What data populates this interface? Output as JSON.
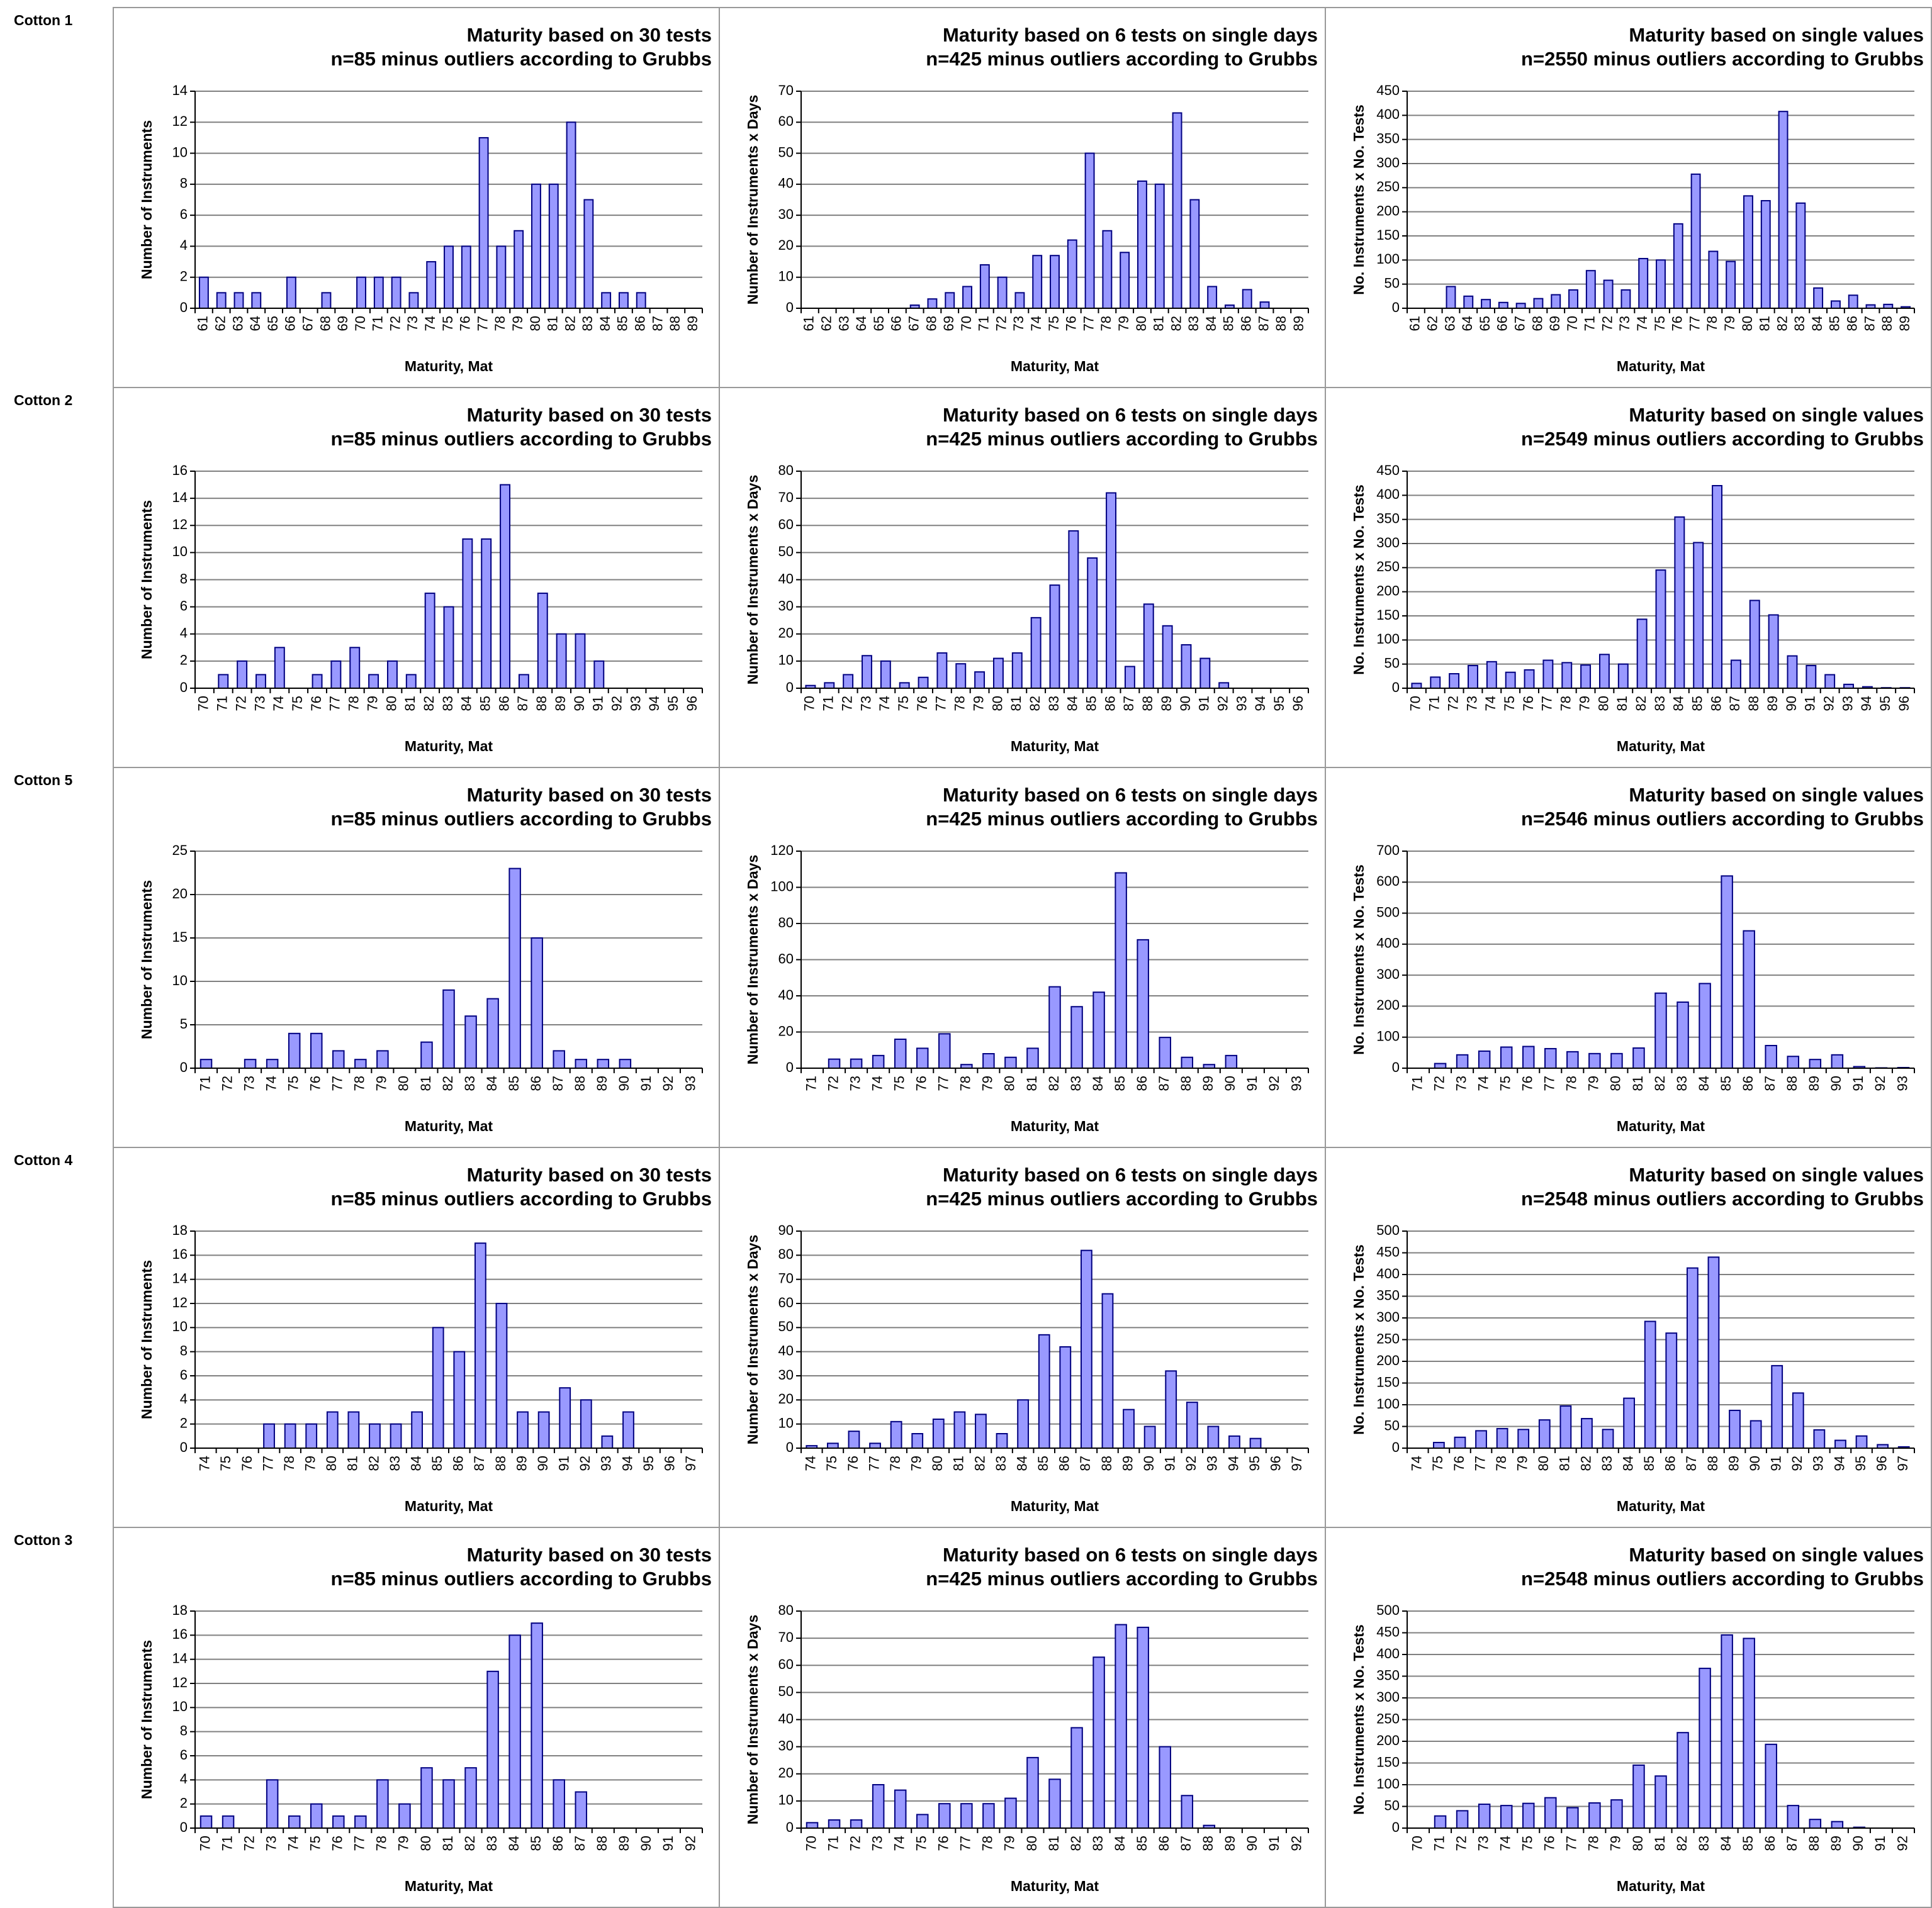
{
  "row_labels": [
    "Cotton 1",
    "Cotton 2",
    "Cotton 5",
    "Cotton 4",
    "Cotton 3"
  ],
  "chart_data": [
    {
      "type": "bar",
      "title": "Maturity based on 30 tests",
      "subtitle": "n=85 minus outliers according to Grubbs",
      "x_label": "Maturity, Mat",
      "y_label": "Number of Instruments",
      "color": "#9999ff",
      "categories": [
        "61",
        "62",
        "63",
        "64",
        "65",
        "66",
        "67",
        "68",
        "69",
        "70",
        "71",
        "72",
        "73",
        "74",
        "75",
        "76",
        "77",
        "78",
        "79",
        "80",
        "81",
        "82",
        "83",
        "84",
        "85",
        "86",
        "87",
        "88",
        "89"
      ],
      "values": [
        2,
        1,
        1,
        1,
        0,
        2,
        0,
        1,
        0,
        2,
        2,
        2,
        1,
        3,
        4,
        4,
        11,
        4,
        5,
        8,
        8,
        12,
        7,
        1,
        1,
        1,
        0,
        0,
        0
      ],
      "ylim": [
        0,
        14
      ],
      "yticks": [
        0,
        2,
        4,
        6,
        8,
        10,
        12,
        14
      ],
      "grid": true
    },
    {
      "type": "bar",
      "title": "Maturity based on 6 tests on single days",
      "subtitle": "n=425 minus outliers according to Grubbs",
      "x_label": "Maturity, Mat",
      "y_label": "Number of Instruments x Days",
      "color": "#9999ff",
      "categories": [
        "61",
        "62",
        "63",
        "64",
        "65",
        "66",
        "67",
        "68",
        "69",
        "70",
        "71",
        "72",
        "73",
        "74",
        "75",
        "76",
        "77",
        "78",
        "79",
        "80",
        "81",
        "82",
        "83",
        "84",
        "85",
        "86",
        "87",
        "88",
        "89"
      ],
      "values": [
        0,
        0,
        0,
        0,
        0,
        0,
        1,
        3,
        5,
        7,
        14,
        10,
        5,
        17,
        17,
        22,
        50,
        25,
        18,
        41,
        40,
        63,
        35,
        7,
        1,
        6,
        2,
        0,
        0
      ],
      "ylim": [
        0,
        70
      ],
      "yticks": [
        0,
        10,
        20,
        30,
        40,
        50,
        60,
        70
      ],
      "grid": true
    },
    {
      "type": "bar",
      "title": "Maturity based on single values",
      "subtitle": "n=2550 minus outliers according to Grubbs",
      "x_label": "Maturity, Mat",
      "y_label": "No. Instruments x No. Tests",
      "color": "#9999ff",
      "categories": [
        "61",
        "62",
        "63",
        "64",
        "65",
        "66",
        "67",
        "68",
        "69",
        "70",
        "71",
        "72",
        "73",
        "74",
        "75",
        "76",
        "77",
        "78",
        "79",
        "80",
        "81",
        "82",
        "83",
        "84",
        "85",
        "86",
        "87",
        "88",
        "89"
      ],
      "values": [
        0,
        0,
        45,
        25,
        18,
        12,
        10,
        20,
        28,
        38,
        78,
        58,
        38,
        103,
        100,
        175,
        278,
        118,
        97,
        233,
        223,
        408,
        218,
        42,
        15,
        27,
        7,
        8,
        3
      ],
      "ylim": [
        0,
        450
      ],
      "yticks": [
        0,
        50,
        100,
        150,
        200,
        250,
        300,
        350,
        400,
        450
      ],
      "grid": true
    },
    {
      "type": "bar",
      "title": "Maturity based on 30 tests",
      "subtitle": "n=85 minus outliers according to Grubbs",
      "x_label": "Maturity, Mat",
      "y_label": "Number of Instruments",
      "color": "#9999ff",
      "categories": [
        "70",
        "71",
        "72",
        "73",
        "74",
        "75",
        "76",
        "77",
        "78",
        "79",
        "80",
        "81",
        "82",
        "83",
        "84",
        "85",
        "86",
        "87",
        "88",
        "89",
        "90",
        "91",
        "92",
        "93",
        "94",
        "95",
        "96"
      ],
      "values": [
        0,
        1,
        2,
        1,
        3,
        0,
        1,
        2,
        3,
        1,
        2,
        1,
        7,
        6,
        11,
        11,
        15,
        1,
        7,
        4,
        4,
        2,
        0,
        0,
        0,
        0,
        0
      ],
      "ylim": [
        0,
        16
      ],
      "yticks": [
        0,
        2,
        4,
        6,
        8,
        10,
        12,
        14,
        16
      ],
      "grid": true
    },
    {
      "type": "bar",
      "title": "Maturity based on 6 tests on single days",
      "subtitle": "n=425 minus outliers according to Grubbs",
      "x_label": "Maturity, Mat",
      "y_label": "Number of Instruments x Days",
      "color": "#9999ff",
      "categories": [
        "70",
        "71",
        "72",
        "73",
        "74",
        "75",
        "76",
        "77",
        "78",
        "79",
        "80",
        "81",
        "82",
        "83",
        "84",
        "85",
        "86",
        "87",
        "88",
        "89",
        "90",
        "91",
        "92",
        "93",
        "94",
        "95",
        "96"
      ],
      "values": [
        1,
        2,
        5,
        12,
        10,
        2,
        4,
        13,
        9,
        6,
        11,
        13,
        26,
        38,
        58,
        48,
        72,
        8,
        31,
        23,
        16,
        11,
        2,
        0,
        0,
        0,
        0
      ],
      "ylim": [
        0,
        80
      ],
      "yticks": [
        0,
        10,
        20,
        30,
        40,
        50,
        60,
        70,
        80
      ],
      "grid": true
    },
    {
      "type": "bar",
      "title": "Maturity based on single values",
      "subtitle": "n=2549 minus outliers according to Grubbs",
      "x_label": "Maturity, Mat",
      "y_label": "No. Instruments x No. Tests",
      "color": "#9999ff",
      "categories": [
        "70",
        "71",
        "72",
        "73",
        "74",
        "75",
        "76",
        "77",
        "78",
        "79",
        "80",
        "81",
        "82",
        "83",
        "84",
        "85",
        "86",
        "87",
        "88",
        "89",
        "90",
        "91",
        "92",
        "93",
        "94",
        "95",
        "96"
      ],
      "values": [
        10,
        23,
        30,
        47,
        55,
        33,
        38,
        58,
        53,
        48,
        70,
        50,
        143,
        245,
        355,
        302,
        420,
        58,
        182,
        152,
        67,
        47,
        28,
        8,
        3,
        1,
        1
      ],
      "ylim": [
        0,
        450
      ],
      "yticks": [
        0,
        50,
        100,
        150,
        200,
        250,
        300,
        350,
        400,
        450
      ],
      "grid": true
    },
    {
      "type": "bar",
      "title": "Maturity based on 30 tests",
      "subtitle": "n=85 minus outliers according to Grubbs",
      "x_label": "Maturity, Mat",
      "y_label": "Number of Instruments",
      "color": "#9999ff",
      "categories": [
        "71",
        "72",
        "73",
        "74",
        "75",
        "76",
        "77",
        "78",
        "79",
        "80",
        "81",
        "82",
        "83",
        "84",
        "85",
        "86",
        "87",
        "88",
        "89",
        "90",
        "91",
        "92",
        "93"
      ],
      "values": [
        1,
        0,
        1,
        1,
        4,
        4,
        2,
        1,
        2,
        0,
        3,
        9,
        6,
        8,
        23,
        15,
        2,
        1,
        1,
        1,
        0,
        0,
        0
      ],
      "ylim": [
        0,
        25
      ],
      "yticks": [
        0,
        5,
        10,
        15,
        20,
        25
      ],
      "grid": true
    },
    {
      "type": "bar",
      "title": "Maturity based on 6 tests on single days",
      "subtitle": "n=425 minus outliers according to Grubbs",
      "x_label": "Maturity, Mat",
      "y_label": "Number of Instruments x Days",
      "color": "#9999ff",
      "categories": [
        "71",
        "72",
        "73",
        "74",
        "75",
        "76",
        "77",
        "78",
        "79",
        "80",
        "81",
        "82",
        "83",
        "84",
        "85",
        "86",
        "87",
        "88",
        "89",
        "90",
        "91",
        "92",
        "93"
      ],
      "values": [
        0,
        5,
        5,
        7,
        16,
        11,
        19,
        2,
        8,
        6,
        11,
        45,
        34,
        42,
        108,
        71,
        17,
        6,
        2,
        7,
        0,
        0,
        0
      ],
      "ylim": [
        0,
        120
      ],
      "yticks": [
        0,
        20,
        40,
        60,
        80,
        100,
        120
      ],
      "grid": true
    },
    {
      "type": "bar",
      "title": "Maturity based on single values",
      "subtitle": "n=2546 minus outliers according to Grubbs",
      "x_label": "Maturity, Mat",
      "y_label": "No. Instruments x No. Tests",
      "color": "#9999ff",
      "categories": [
        "71",
        "72",
        "73",
        "74",
        "75",
        "76",
        "77",
        "78",
        "79",
        "80",
        "81",
        "82",
        "83",
        "84",
        "85",
        "86",
        "87",
        "88",
        "89",
        "90",
        "91",
        "92",
        "93"
      ],
      "values": [
        0,
        15,
        43,
        55,
        68,
        70,
        63,
        53,
        47,
        47,
        65,
        242,
        213,
        273,
        620,
        443,
        73,
        38,
        28,
        43,
        5,
        1,
        2
      ],
      "ylim": [
        0,
        700
      ],
      "yticks": [
        0,
        100,
        200,
        300,
        400,
        500,
        600,
        700
      ],
      "grid": true
    },
    {
      "type": "bar",
      "title": "Maturity based on 30 tests",
      "subtitle": "n=85 minus outliers according to Grubbs",
      "x_label": "Maturity, Mat",
      "y_label": "Number of Instruments",
      "color": "#9999ff",
      "categories": [
        "74",
        "75",
        "76",
        "77",
        "78",
        "79",
        "80",
        "81",
        "82",
        "83",
        "84",
        "85",
        "86",
        "87",
        "88",
        "89",
        "90",
        "91",
        "92",
        "93",
        "94",
        "95",
        "96",
        "97"
      ],
      "values": [
        0,
        0,
        0,
        2,
        2,
        2,
        3,
        3,
        2,
        2,
        3,
        10,
        8,
        17,
        12,
        3,
        3,
        5,
        4,
        1,
        3,
        0,
        0,
        0
      ],
      "ylim": [
        0,
        18
      ],
      "yticks": [
        0,
        2,
        4,
        6,
        8,
        10,
        12,
        14,
        16,
        18
      ],
      "grid": true
    },
    {
      "type": "bar",
      "title": "Maturity based on 6 tests on single days",
      "subtitle": "n=425 minus outliers according to Grubbs",
      "x_label": "Maturity, Mat",
      "y_label": "Number of Instruments x Days",
      "color": "#9999ff",
      "categories": [
        "74",
        "75",
        "76",
        "77",
        "78",
        "79",
        "80",
        "81",
        "82",
        "83",
        "84",
        "85",
        "86",
        "87",
        "88",
        "89",
        "90",
        "91",
        "92",
        "93",
        "94",
        "95",
        "96",
        "97"
      ],
      "values": [
        1,
        2,
        7,
        2,
        11,
        6,
        12,
        15,
        14,
        6,
        20,
        47,
        42,
        82,
        64,
        16,
        9,
        32,
        19,
        9,
        5,
        4,
        0,
        0
      ],
      "ylim": [
        0,
        90
      ],
      "yticks": [
        0,
        10,
        20,
        30,
        40,
        50,
        60,
        70,
        80,
        90
      ],
      "grid": true
    },
    {
      "type": "bar",
      "title": "Maturity based on single values",
      "subtitle": "n=2548 minus outliers according to Grubbs",
      "x_label": "Maturity, Mat",
      "y_label": "No. Instruments x No. Tests",
      "color": "#9999ff",
      "categories": [
        "74",
        "75",
        "76",
        "77",
        "78",
        "79",
        "80",
        "81",
        "82",
        "83",
        "84",
        "85",
        "86",
        "87",
        "88",
        "89",
        "90",
        "91",
        "92",
        "93",
        "94",
        "95",
        "96",
        "97"
      ],
      "values": [
        0,
        13,
        25,
        40,
        45,
        43,
        65,
        97,
        68,
        43,
        115,
        292,
        265,
        415,
        440,
        87,
        63,
        190,
        127,
        42,
        18,
        28,
        8,
        3
      ],
      "ylim": [
        0,
        500
      ],
      "yticks": [
        0,
        50,
        100,
        150,
        200,
        250,
        300,
        350,
        400,
        450,
        500
      ],
      "grid": true
    },
    {
      "type": "bar",
      "title": "Maturity based on 30 tests",
      "subtitle": "n=85 minus outliers according to Grubbs",
      "x_label": "Maturity, Mat",
      "y_label": "Number of Instruments",
      "color": "#9999ff",
      "categories": [
        "70",
        "71",
        "72",
        "73",
        "74",
        "75",
        "76",
        "77",
        "78",
        "79",
        "80",
        "81",
        "82",
        "83",
        "84",
        "85",
        "86",
        "87",
        "88",
        "89",
        "90",
        "91",
        "92"
      ],
      "values": [
        1,
        1,
        0,
        4,
        1,
        2,
        1,
        1,
        4,
        2,
        5,
        4,
        5,
        13,
        16,
        17,
        4,
        3,
        0,
        0,
        0,
        0,
        0
      ],
      "ylim": [
        0,
        18
      ],
      "yticks": [
        0,
        2,
        4,
        6,
        8,
        10,
        12,
        14,
        16,
        18
      ],
      "grid": true
    },
    {
      "type": "bar",
      "title": "Maturity based on 6 tests on single days",
      "subtitle": "n=425 minus outliers according to Grubbs",
      "x_label": "Maturity, Mat",
      "y_label": "Number of Instruments x Days",
      "color": "#9999ff",
      "categories": [
        "70",
        "71",
        "72",
        "73",
        "74",
        "75",
        "76",
        "77",
        "78",
        "79",
        "80",
        "81",
        "82",
        "83",
        "84",
        "85",
        "86",
        "87",
        "88",
        "89",
        "90",
        "91",
        "92"
      ],
      "values": [
        2,
        3,
        3,
        16,
        14,
        5,
        9,
        9,
        9,
        11,
        26,
        18,
        37,
        63,
        75,
        74,
        30,
        12,
        1,
        0,
        0,
        0,
        0
      ],
      "ylim": [
        0,
        80
      ],
      "yticks": [
        0,
        10,
        20,
        30,
        40,
        50,
        60,
        70,
        80
      ],
      "grid": true
    },
    {
      "type": "bar",
      "title": "Maturity based on single values",
      "subtitle": "n=2548 minus outliers according to Grubbs",
      "x_label": "Maturity, Mat",
      "y_label": "No. Instruments x No. Tests",
      "color": "#9999ff",
      "categories": [
        "70",
        "71",
        "72",
        "73",
        "74",
        "75",
        "76",
        "77",
        "78",
        "79",
        "80",
        "81",
        "82",
        "83",
        "84",
        "85",
        "86",
        "87",
        "88",
        "89",
        "90",
        "91",
        "92"
      ],
      "values": [
        0,
        28,
        40,
        55,
        52,
        57,
        70,
        47,
        58,
        65,
        145,
        120,
        220,
        368,
        445,
        437,
        193,
        52,
        20,
        15,
        2,
        0,
        0
      ],
      "ylim": [
        0,
        500
      ],
      "yticks": [
        0,
        50,
        100,
        150,
        200,
        250,
        300,
        350,
        400,
        450,
        500
      ],
      "grid": true
    }
  ]
}
